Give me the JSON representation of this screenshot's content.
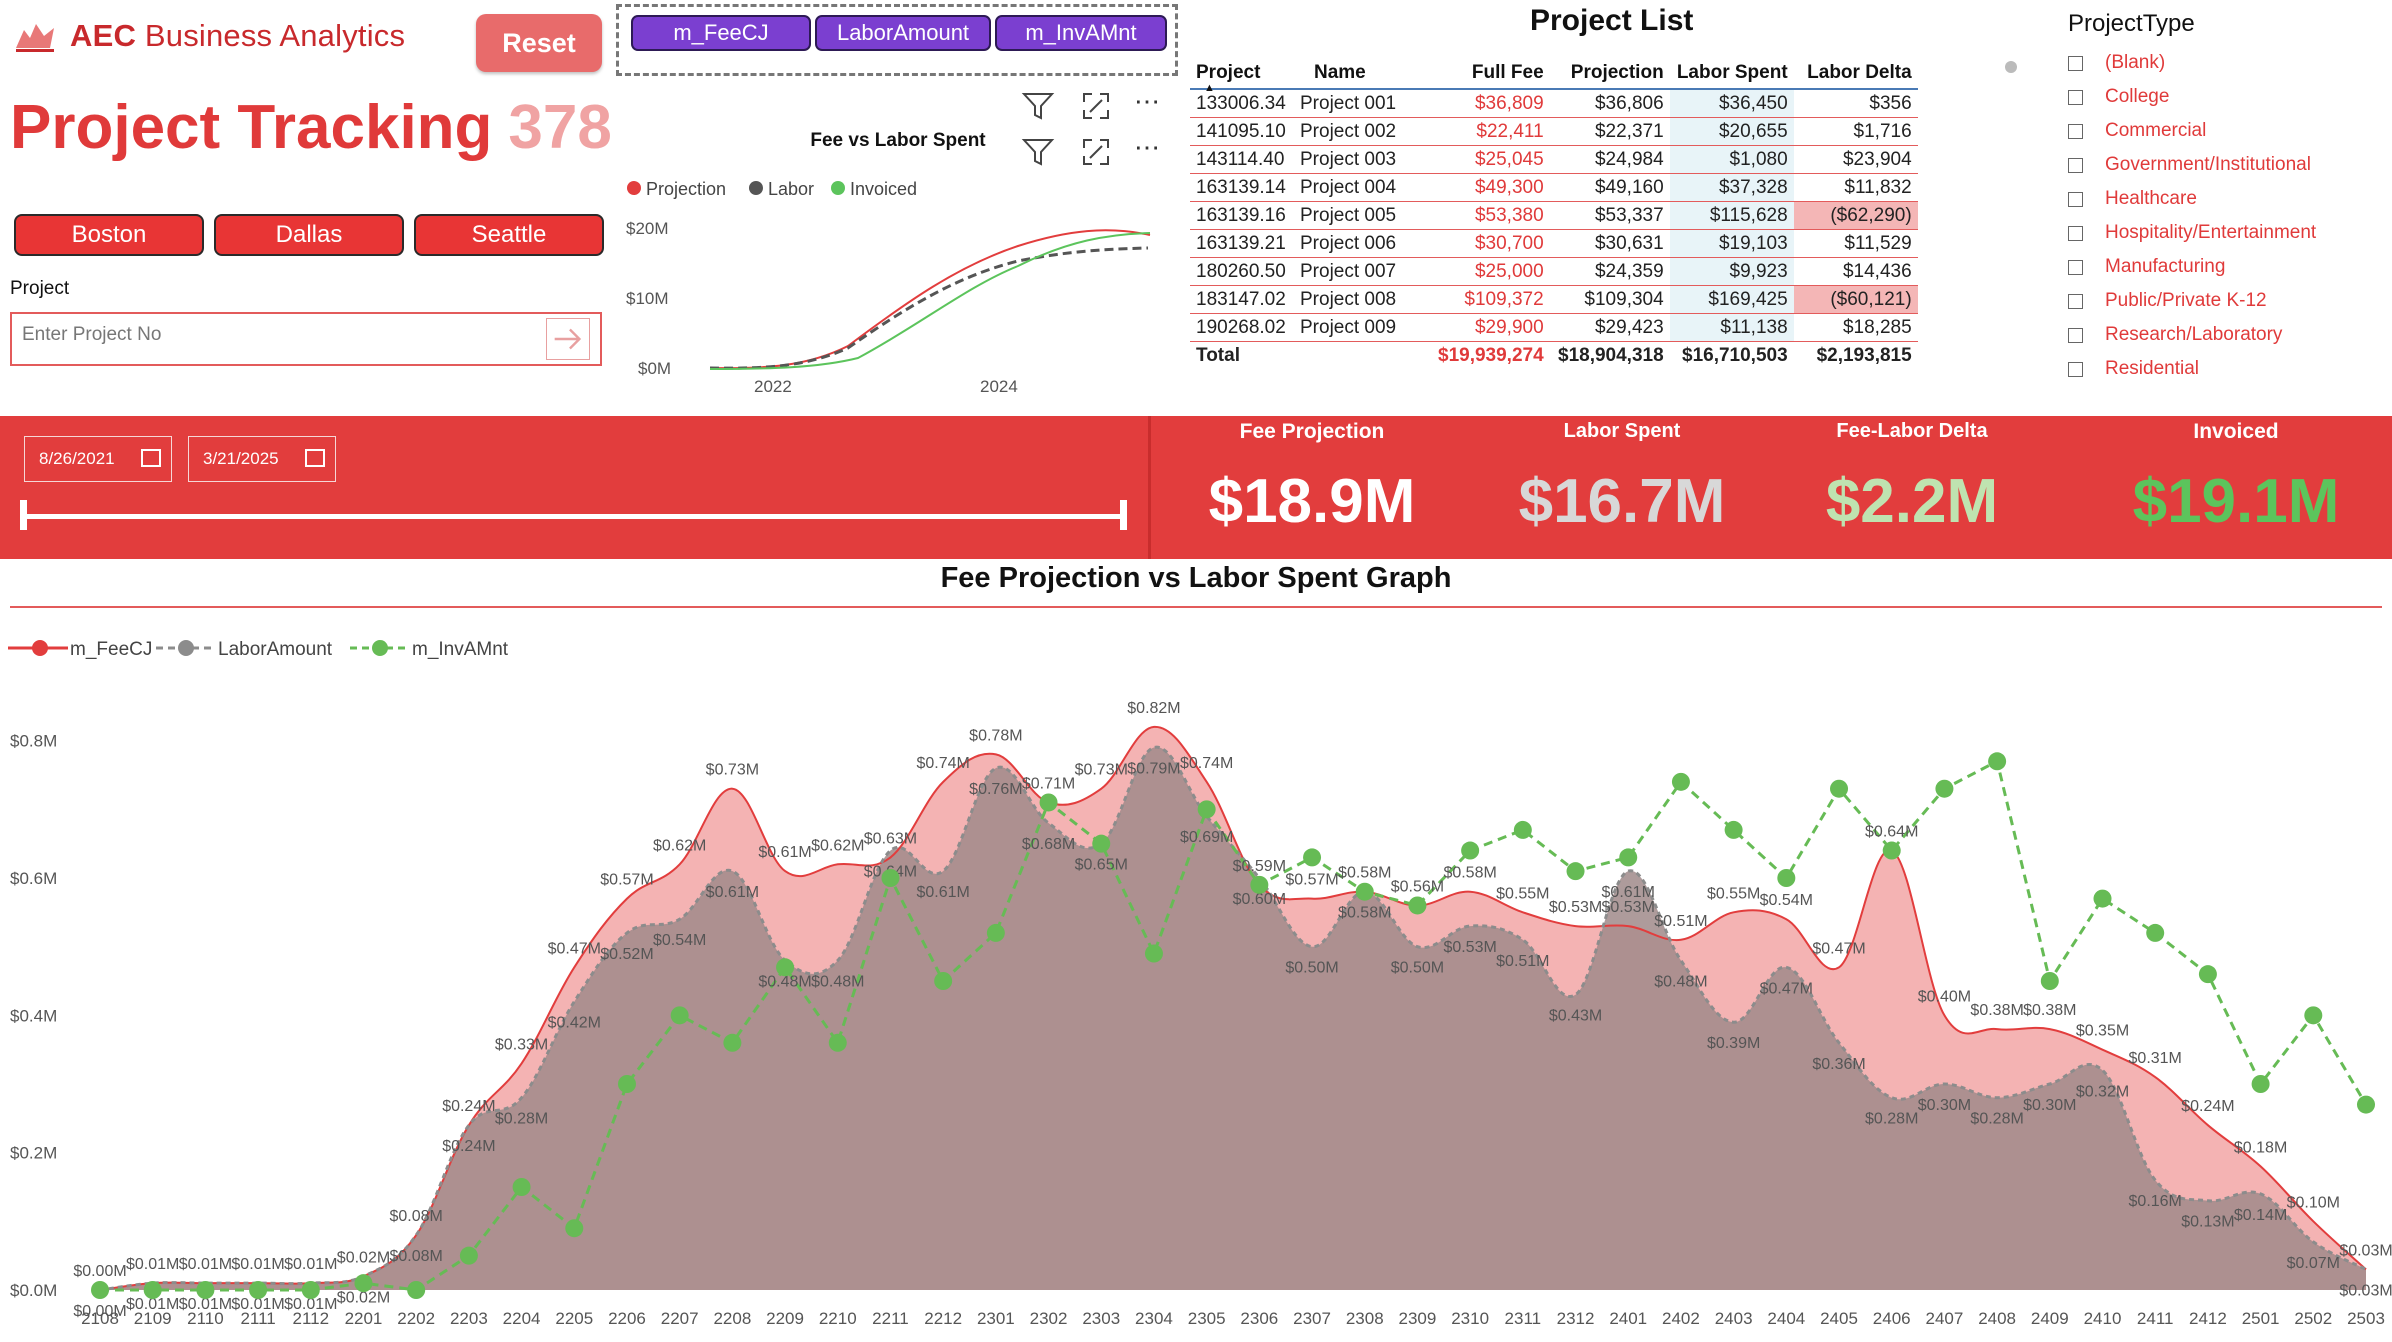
{
  "header": {
    "brand_bold": "AEC",
    "brand_rest": " Business Analytics",
    "reset_label": "Reset",
    "title": "Project Tracking",
    "project_count": "378"
  },
  "cities": [
    "Boston",
    "Dallas",
    "Seattle"
  ],
  "project_filter": {
    "label": "Project",
    "placeholder": "Enter Project No"
  },
  "measure_buttons": [
    "m_FeeCJ",
    "LaborAmount",
    "m_InvAMnt"
  ],
  "mini_chart": {
    "title": "Fee vs Labor Spent",
    "legend": [
      "Projection",
      "Labor",
      "Invoiced"
    ],
    "y_ticks": [
      "$20M",
      "$10M",
      "$0M"
    ],
    "x_ticks": [
      "2022",
      "2024"
    ]
  },
  "project_list": {
    "title": "Project List",
    "columns": [
      "Project",
      "Name",
      "Full Fee",
      "Projection",
      "Labor Spent",
      "Labor Delta"
    ],
    "rows": [
      [
        "133006.34",
        "Project 001",
        "$36,809",
        "$36,806",
        "$36,450",
        "$356"
      ],
      [
        "141095.10",
        "Project 002",
        "$22,411",
        "$22,371",
        "$20,655",
        "$1,716"
      ],
      [
        "143114.40",
        "Project 003",
        "$25,045",
        "$24,984",
        "$1,080",
        "$23,904"
      ],
      [
        "163139.14",
        "Project 004",
        "$49,300",
        "$49,160",
        "$37,328",
        "$11,832"
      ],
      [
        "163139.16",
        "Project 005",
        "$53,380",
        "$53,337",
        "$115,628",
        "($62,290)"
      ],
      [
        "163139.21",
        "Project 006",
        "$30,700",
        "$30,631",
        "$19,103",
        "$11,529"
      ],
      [
        "180260.50",
        "Project 007",
        "$25,000",
        "$24,359",
        "$9,923",
        "$14,436"
      ],
      [
        "183147.02",
        "Project 008",
        "$109,372",
        "$109,304",
        "$169,425",
        "($60,121)"
      ],
      [
        "190268.02",
        "Project 009",
        "$29,900",
        "$29,423",
        "$11,138",
        "$18,285"
      ]
    ],
    "total": [
      "Total",
      "",
      "$19,939,274",
      "$18,904,318",
      "$16,710,503",
      "$2,193,815"
    ]
  },
  "project_type": {
    "title": "ProjectType",
    "items": [
      "(Blank)",
      "College",
      "Commercial",
      "Government/Institutional",
      "Healthcare",
      "Hospitality/Entertainment",
      "Manufacturing",
      "Public/Private K-12",
      "Research/Laboratory",
      "Residential"
    ]
  },
  "date_range": {
    "start": "8/26/2021",
    "end": "3/21/2025"
  },
  "kpis": [
    {
      "label": "Fee Projection",
      "value": "$18.9M",
      "color": "#ffffff"
    },
    {
      "label": "Labor Spent",
      "value": "$16.7M",
      "color": "#d8d8d8"
    },
    {
      "label": "Fee-Labor Delta",
      "value": "$2.2M",
      "color": "#bfe3b0"
    },
    {
      "label": "Invoiced",
      "value": "$19.1M",
      "color": "#5cc45c"
    }
  ],
  "colors": {
    "accent": "#e23d3d",
    "labor": "#8c8c8c",
    "invoiced": "#66bb55",
    "measure": "#7b3fd0"
  },
  "main_graph": {
    "title": "Fee Projection vs Labor Spent Graph",
    "legend": [
      "m_FeeCJ",
      "LaborAmount",
      "m_InvAMnt"
    ]
  },
  "chart_data": {
    "type": "area",
    "categories": [
      "2108",
      "2109",
      "2110",
      "2111",
      "2112",
      "2201",
      "2202",
      "2203",
      "2204",
      "2205",
      "2206",
      "2207",
      "2208",
      "2209",
      "2210",
      "2211",
      "2212",
      "2301",
      "2302",
      "2303",
      "2304",
      "2305",
      "2306",
      "2307",
      "2308",
      "2309",
      "2310",
      "2311",
      "2312",
      "2401",
      "2402",
      "2403",
      "2404",
      "2405",
      "2406",
      "2407",
      "2408",
      "2409",
      "2410",
      "2411",
      "2412",
      "2501",
      "2502",
      "2503"
    ],
    "ylim": [
      0,
      0.9
    ],
    "y_ticks": [
      "$0.0M",
      "$0.2M",
      "$0.4M",
      "$0.6M",
      "$0.8M"
    ],
    "series": [
      {
        "name": "m_FeeCJ",
        "values": [
          0.0,
          0.01,
          0.01,
          0.01,
          0.01,
          0.02,
          0.08,
          0.24,
          0.33,
          0.47,
          0.57,
          0.62,
          0.73,
          0.61,
          0.62,
          0.63,
          0.74,
          0.78,
          0.71,
          0.73,
          0.82,
          0.74,
          0.59,
          0.57,
          0.58,
          0.56,
          0.58,
          0.55,
          0.53,
          0.53,
          0.51,
          0.55,
          0.54,
          0.47,
          0.64,
          0.4,
          0.38,
          0.38,
          0.35,
          0.31,
          0.24,
          0.18,
          0.1,
          0.03
        ]
      },
      {
        "name": "LaborAmount",
        "values": [
          0.0,
          0.01,
          0.01,
          0.01,
          0.01,
          0.02,
          0.08,
          0.24,
          0.28,
          0.42,
          0.52,
          0.54,
          0.61,
          0.48,
          0.48,
          0.64,
          0.61,
          0.76,
          0.68,
          0.65,
          0.79,
          0.69,
          0.6,
          0.5,
          0.58,
          0.5,
          0.53,
          0.51,
          0.43,
          0.61,
          0.48,
          0.39,
          0.47,
          0.36,
          0.28,
          0.3,
          0.28,
          0.3,
          0.32,
          0.16,
          0.13,
          0.14,
          0.07,
          0.03
        ]
      },
      {
        "name": "m_InvAMnt",
        "values": [
          0.0,
          0.0,
          0.0,
          0.0,
          0.0,
          0.01,
          0.0,
          0.05,
          0.15,
          0.09,
          0.3,
          0.4,
          0.36,
          0.47,
          0.36,
          0.6,
          0.45,
          0.52,
          0.71,
          0.65,
          0.49,
          0.7,
          0.59,
          0.63,
          0.58,
          0.56,
          0.64,
          0.67,
          0.61,
          0.63,
          0.74,
          0.67,
          0.6,
          0.73,
          0.64,
          0.73,
          0.77,
          0.45,
          0.57,
          0.52,
          0.46,
          0.3,
          0.4,
          0.27
        ]
      }
    ]
  }
}
